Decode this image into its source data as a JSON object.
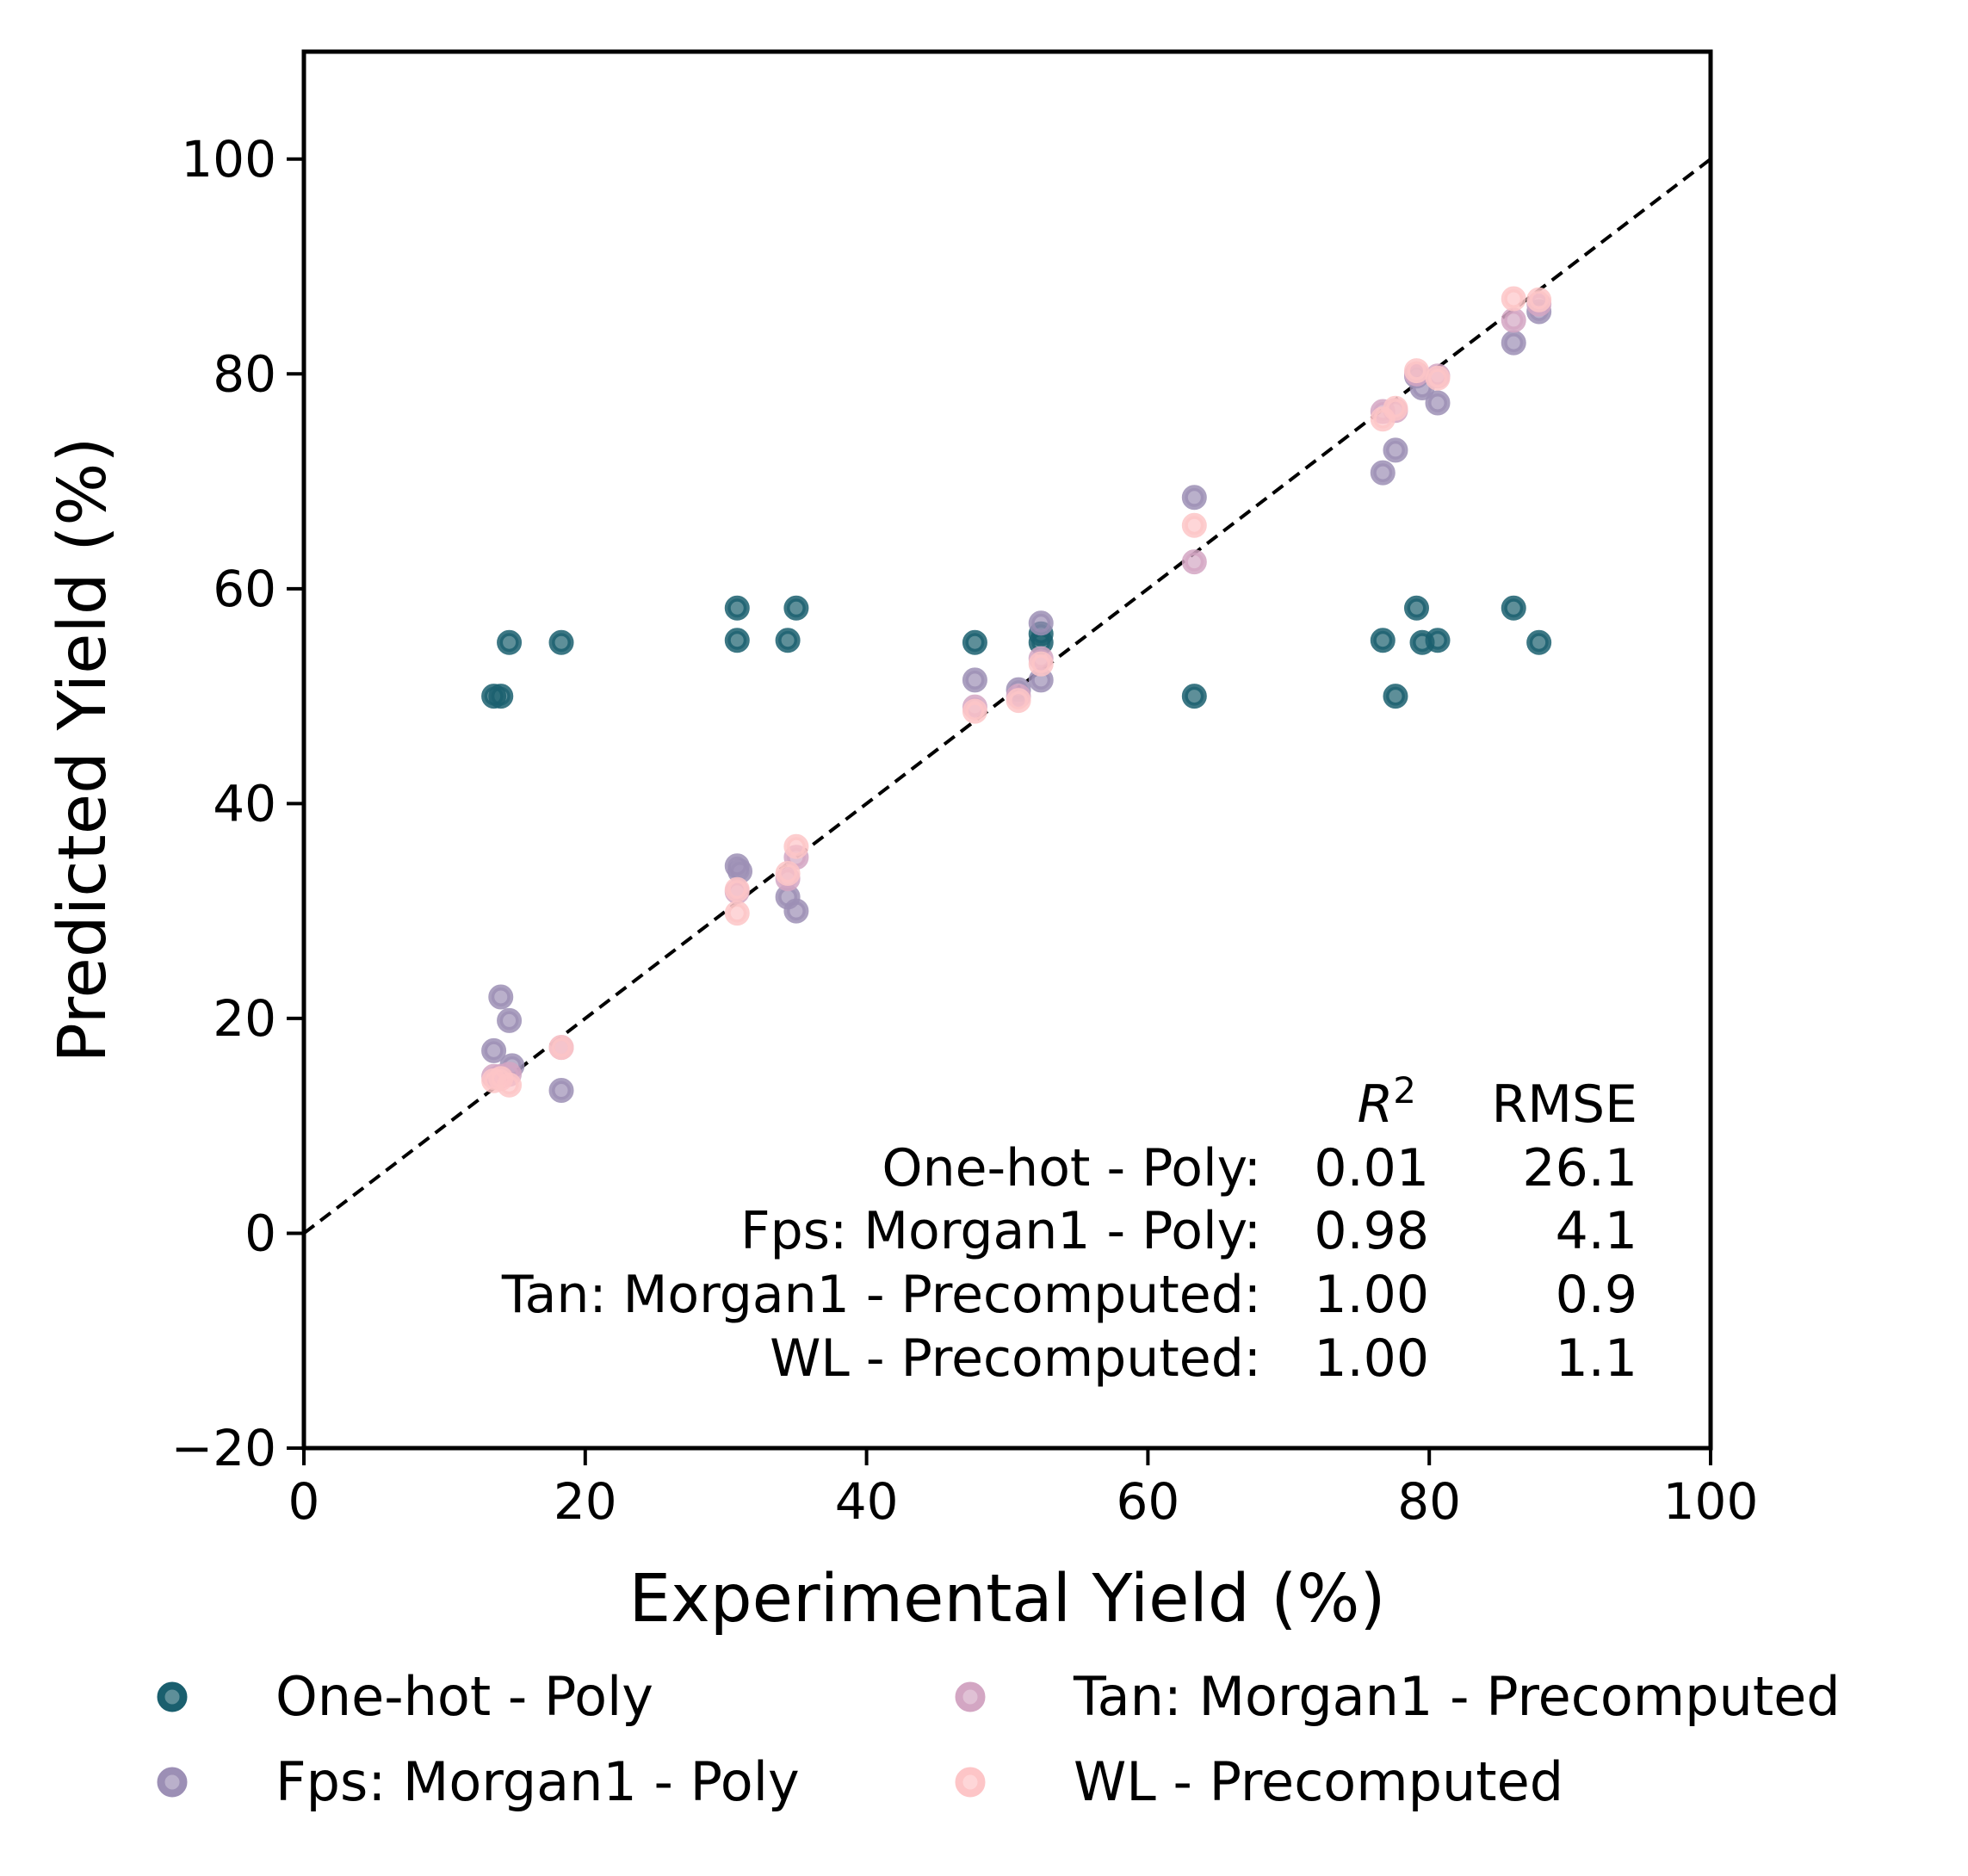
{
  "chart_data": {
    "type": "scatter",
    "xlabel": "Experimental Yield (%)",
    "ylabel": "Predicted Yield (%)",
    "xlim": [
      0,
      100
    ],
    "ylim": [
      -20,
      110
    ],
    "x_ticks": [
      0,
      20,
      40,
      60,
      80,
      100
    ],
    "y_ticks": [
      -20,
      0,
      20,
      40,
      60,
      80,
      100
    ],
    "x_tick_labels": [
      "0",
      "20",
      "40",
      "60",
      "80",
      "100"
    ],
    "y_tick_labels": [
      "−20",
      "0",
      "20",
      "40",
      "60",
      "80",
      "100"
    ],
    "grid": false,
    "reference_line": {
      "style": "dashed",
      "points": [
        [
          0,
          0
        ],
        [
          100,
          100
        ]
      ]
    },
    "legend_position": "bottom, two columns",
    "series": [
      {
        "name": "One-hot - Poly",
        "color": "#1a5f6e",
        "points": [
          [
            13.5,
            50
          ],
          [
            14.0,
            50
          ],
          [
            14.6,
            55
          ],
          [
            18.3,
            55
          ],
          [
            30.8,
            58.2
          ],
          [
            30.8,
            55.2
          ],
          [
            34.4,
            55.2
          ],
          [
            35.0,
            58.2
          ],
          [
            47.7,
            55
          ],
          [
            52.4,
            55.8
          ],
          [
            52.4,
            55
          ],
          [
            63.3,
            50
          ],
          [
            76.7,
            55.2
          ],
          [
            77.6,
            50
          ],
          [
            79.1,
            58.2
          ],
          [
            79.5,
            55
          ],
          [
            80.6,
            55.2
          ],
          [
            86.0,
            58.2
          ],
          [
            87.8,
            55
          ]
        ]
      },
      {
        "name": "Fps: Morgan1 - Poly",
        "color": "#9c8fb5",
        "points": [
          [
            13.5,
            17
          ],
          [
            14.0,
            22
          ],
          [
            14.6,
            19.8
          ],
          [
            14.8,
            15.6
          ],
          [
            18.3,
            13.3
          ],
          [
            30.8,
            34.2
          ],
          [
            31.0,
            33.7
          ],
          [
            34.4,
            31.3
          ],
          [
            35.0,
            30
          ],
          [
            47.7,
            51.5
          ],
          [
            50.8,
            50.6
          ],
          [
            52.4,
            56.8
          ],
          [
            52.4,
            51.5
          ],
          [
            63.3,
            68.5
          ],
          [
            76.7,
            70.8
          ],
          [
            77.6,
            72.9
          ],
          [
            79.1,
            79.8
          ],
          [
            79.5,
            78.7
          ],
          [
            80.6,
            77.3
          ],
          [
            86.0,
            82.9
          ],
          [
            87.8,
            85.8
          ]
        ]
      },
      {
        "name": "Tan: Morgan1 - Precomputed",
        "color": "#d3a6c3",
        "points": [
          [
            13.5,
            14.6
          ],
          [
            14.0,
            14.6
          ],
          [
            14.6,
            14.8
          ],
          [
            18.3,
            17.3
          ],
          [
            30.8,
            31.8
          ],
          [
            34.4,
            33
          ],
          [
            35.0,
            35
          ],
          [
            47.7,
            49
          ],
          [
            50.8,
            50
          ],
          [
            52.4,
            53.5
          ],
          [
            63.3,
            62.5
          ],
          [
            76.7,
            76.5
          ],
          [
            77.6,
            76.6
          ],
          [
            79.1,
            80
          ],
          [
            80.6,
            79.8
          ],
          [
            86.0,
            85
          ],
          [
            87.8,
            86.5
          ]
        ]
      },
      {
        "name": "WL - Precomputed",
        "color": "#fdc5c7",
        "points": [
          [
            13.5,
            14.2
          ],
          [
            14.0,
            14.4
          ],
          [
            14.6,
            13.8
          ],
          [
            18.3,
            17.3
          ],
          [
            30.8,
            32
          ],
          [
            30.8,
            29.8
          ],
          [
            34.4,
            33.5
          ],
          [
            35.0,
            36
          ],
          [
            47.7,
            48.6
          ],
          [
            50.8,
            49.6
          ],
          [
            52.4,
            53
          ],
          [
            63.3,
            65.9
          ],
          [
            76.7,
            75.8
          ],
          [
            77.6,
            76.8
          ],
          [
            79.1,
            80.3
          ],
          [
            80.6,
            79.6
          ],
          [
            86.0,
            87
          ],
          [
            87.8,
            86.9
          ]
        ]
      }
    ],
    "stats_table": {
      "headers": [
        "R",
        "2",
        "RMSE"
      ],
      "rows": [
        {
          "label": "One-hot - Poly:",
          "r2": "0.01",
          "rmse": "26.1"
        },
        {
          "label": "Fps: Morgan1 - Poly:",
          "r2": "0.98",
          "rmse": "4.1"
        },
        {
          "label": "Tan: Morgan1 - Precomputed:",
          "r2": "1.00",
          "rmse": "0.9"
        },
        {
          "label": "WL - Precomputed:",
          "r2": "1.00",
          "rmse": "1.1"
        }
      ]
    }
  }
}
